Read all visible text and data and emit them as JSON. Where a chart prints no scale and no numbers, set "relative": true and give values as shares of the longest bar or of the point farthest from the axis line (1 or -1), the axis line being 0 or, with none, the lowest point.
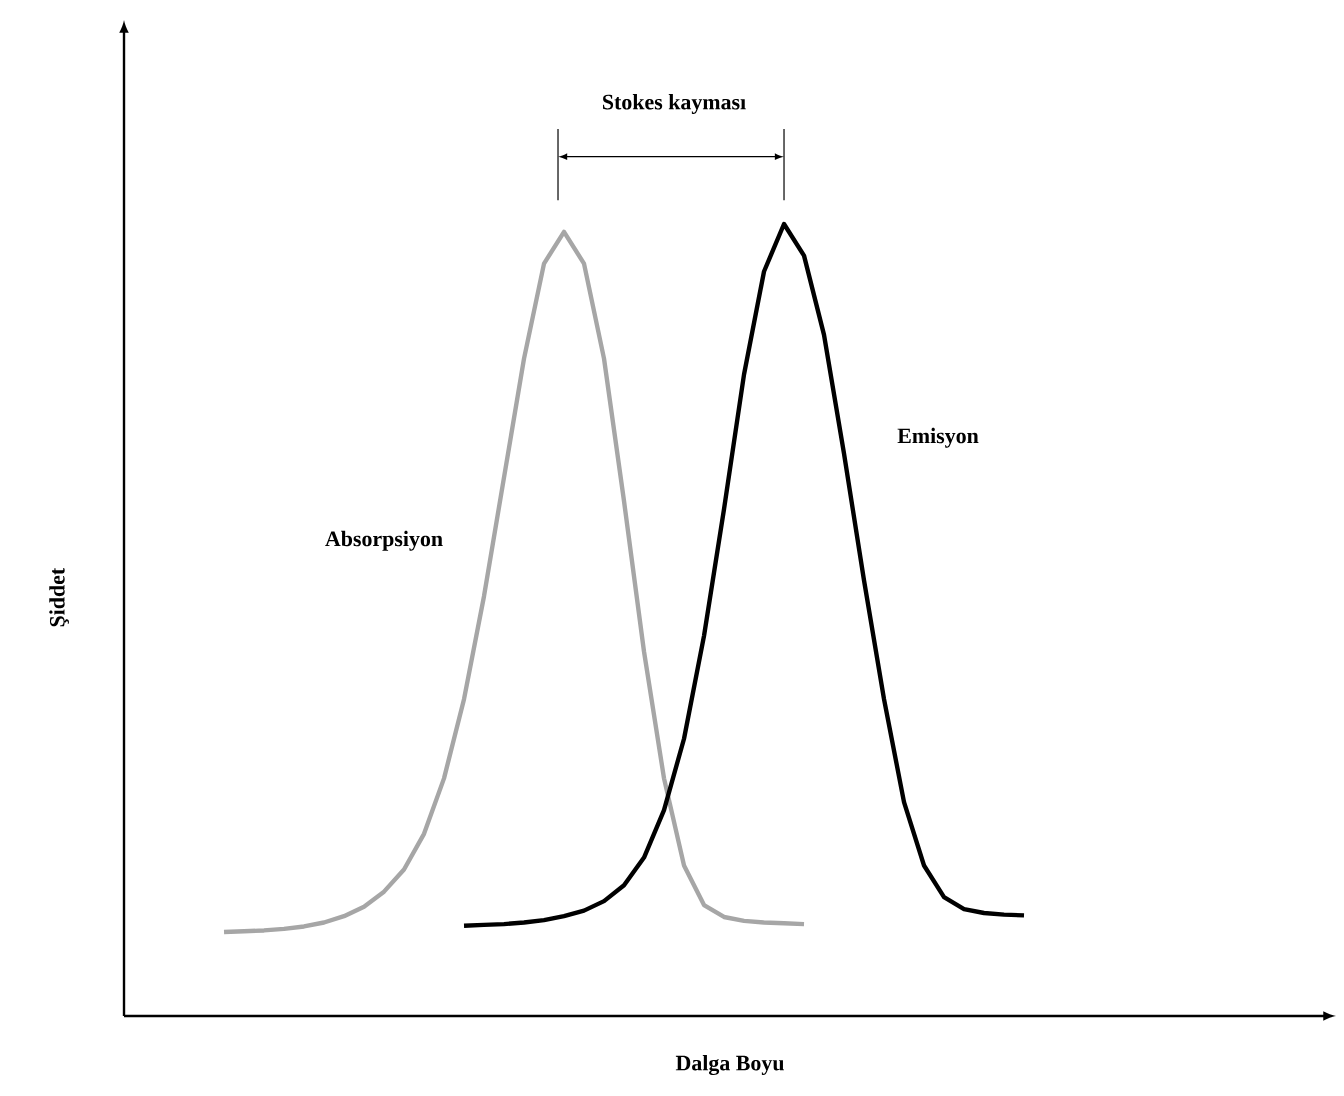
{
  "chart_data": {
    "type": "line",
    "relative": true,
    "xlabel": "Dalga Boyu",
    "ylabel": "Şiddet",
    "annotations": [
      "Stokes kayması"
    ],
    "categories": [
      null,
      null,
      null,
      null,
      null,
      null,
      null,
      null,
      null,
      null,
      null,
      null,
      null,
      null,
      null,
      null,
      null,
      null,
      null,
      null,
      null,
      null,
      null,
      null,
      null,
      null,
      null,
      null,
      null,
      null,
      null,
      null,
      null,
      null,
      null,
      null,
      null,
      null,
      null,
      null,
      null,
      null,
      null,
      null,
      null,
      null,
      null,
      null,
      null,
      null,
      null,
      null,
      null,
      null,
      null,
      null,
      null,
      null,
      null,
      null,
      null
    ],
    "series": [
      {
        "name": "Absorpsiyon",
        "color": "#a6a6a6",
        "values": [
          null,
          null,
          null,
          null,
          null,
          0.106,
          0.107,
          0.108,
          0.11,
          0.113,
          0.118,
          0.126,
          0.138,
          0.157,
          0.185,
          0.23,
          0.3,
          0.4,
          0.53,
          0.68,
          0.83,
          0.95,
          0.99,
          0.95,
          0.83,
          0.65,
          0.46,
          0.3,
          0.19,
          0.14,
          0.125,
          0.12,
          0.118,
          0.117,
          0.116,
          null,
          null,
          null,
          null,
          null,
          null,
          null,
          null,
          null,
          null,
          null,
          null,
          null,
          null,
          null,
          null,
          null,
          null,
          null,
          null,
          null,
          null,
          null,
          null,
          null,
          null
        ]
      },
      {
        "name": "Emisyon",
        "color": "#000000",
        "values": [
          null,
          null,
          null,
          null,
          null,
          null,
          null,
          null,
          null,
          null,
          null,
          null,
          null,
          null,
          null,
          null,
          null,
          0.114,
          0.115,
          0.116,
          0.118,
          0.121,
          0.126,
          0.133,
          0.145,
          0.165,
          0.2,
          0.26,
          0.35,
          0.48,
          0.64,
          0.81,
          0.94,
          1,
          0.96,
          0.86,
          0.71,
          0.55,
          0.4,
          0.27,
          0.19,
          0.15,
          0.135,
          0.13,
          0.128,
          0.127,
          null,
          null,
          null,
          null,
          null,
          null,
          null,
          null,
          null,
          null,
          null,
          null,
          null,
          null,
          null
        ]
      }
    ],
    "marker": "none",
    "line_style": "solid"
  }
}
